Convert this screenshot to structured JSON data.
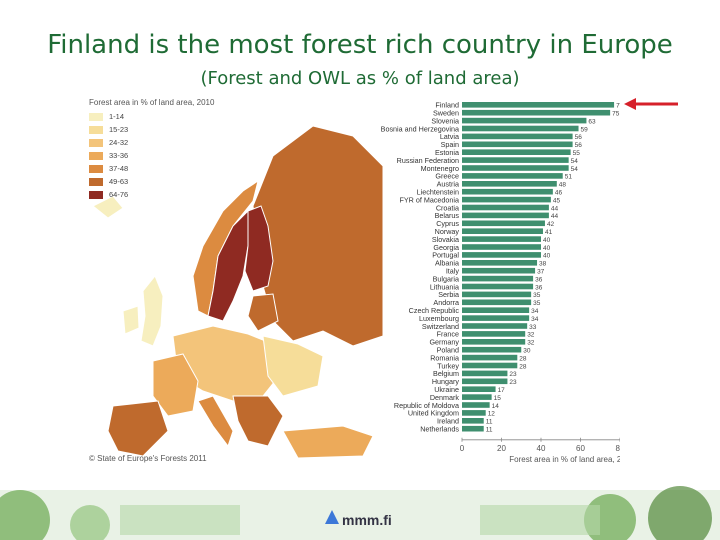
{
  "title": "Finland is the most forest rich country in Europe",
  "subtitle": "(Forest and OWL as % of land area)",
  "map": {
    "legend_title": "Forest area in % of land area, 2010",
    "legend": [
      {
        "label": "1-14",
        "color": "#f7efbf"
      },
      {
        "label": "15-23",
        "color": "#f6dd99"
      },
      {
        "label": "24-32",
        "color": "#f3c47a"
      },
      {
        "label": "33-36",
        "color": "#ecaa5a"
      },
      {
        "label": "37-48",
        "color": "#dc8b40"
      },
      {
        "label": "49-63",
        "color": "#bf6a2d"
      },
      {
        "label": "64-76",
        "color": "#8f2a22"
      }
    ],
    "copyright": "© State of Europe's Forests 2011"
  },
  "logo": {
    "text": "mmm.fi"
  },
  "chart_data": {
    "type": "bar",
    "orientation": "horizontal",
    "categories": [
      "Finland",
      "Sweden",
      "Slovenia",
      "Bosnia and Herzegovina",
      "Latvia",
      "Spain",
      "Estonia",
      "Russian Federation",
      "Montenegro",
      "Greece",
      "Austria",
      "Liechtenstein",
      "FYR of Macedonia",
      "Croatia",
      "Belarus",
      "Cyprus",
      "Norway",
      "Slovakia",
      "Georgia",
      "Portugal",
      "Albania",
      "Italy",
      "Bulgaria",
      "Lithuania",
      "Serbia",
      "Andorra",
      "Czech Republic",
      "Luxembourg",
      "Switzerland",
      "France",
      "Germany",
      "Poland",
      "Romania",
      "Turkey",
      "Belgium",
      "Hungary",
      "Ukraine",
      "Denmark",
      "Republic of Moldova",
      "United Kingdom",
      "Ireland",
      "Netherlands"
    ],
    "values": [
      77,
      75,
      63,
      59,
      56,
      56,
      55,
      54,
      54,
      51,
      48,
      46,
      45,
      44,
      44,
      42,
      41,
      40,
      40,
      40,
      38,
      37,
      36,
      36,
      35,
      35,
      34,
      34,
      33,
      32,
      32,
      30,
      28,
      28,
      23,
      23,
      17,
      15,
      14,
      12,
      11,
      11
    ],
    "xlabel": "Forest area in % of land area, 2010",
    "xlim": [
      0,
      80
    ],
    "xticks": [
      0,
      20,
      40,
      60,
      80
    ],
    "bar_color": "#3f8f6f",
    "highlight": "Finland",
    "arrow_color": "#d6202a"
  }
}
